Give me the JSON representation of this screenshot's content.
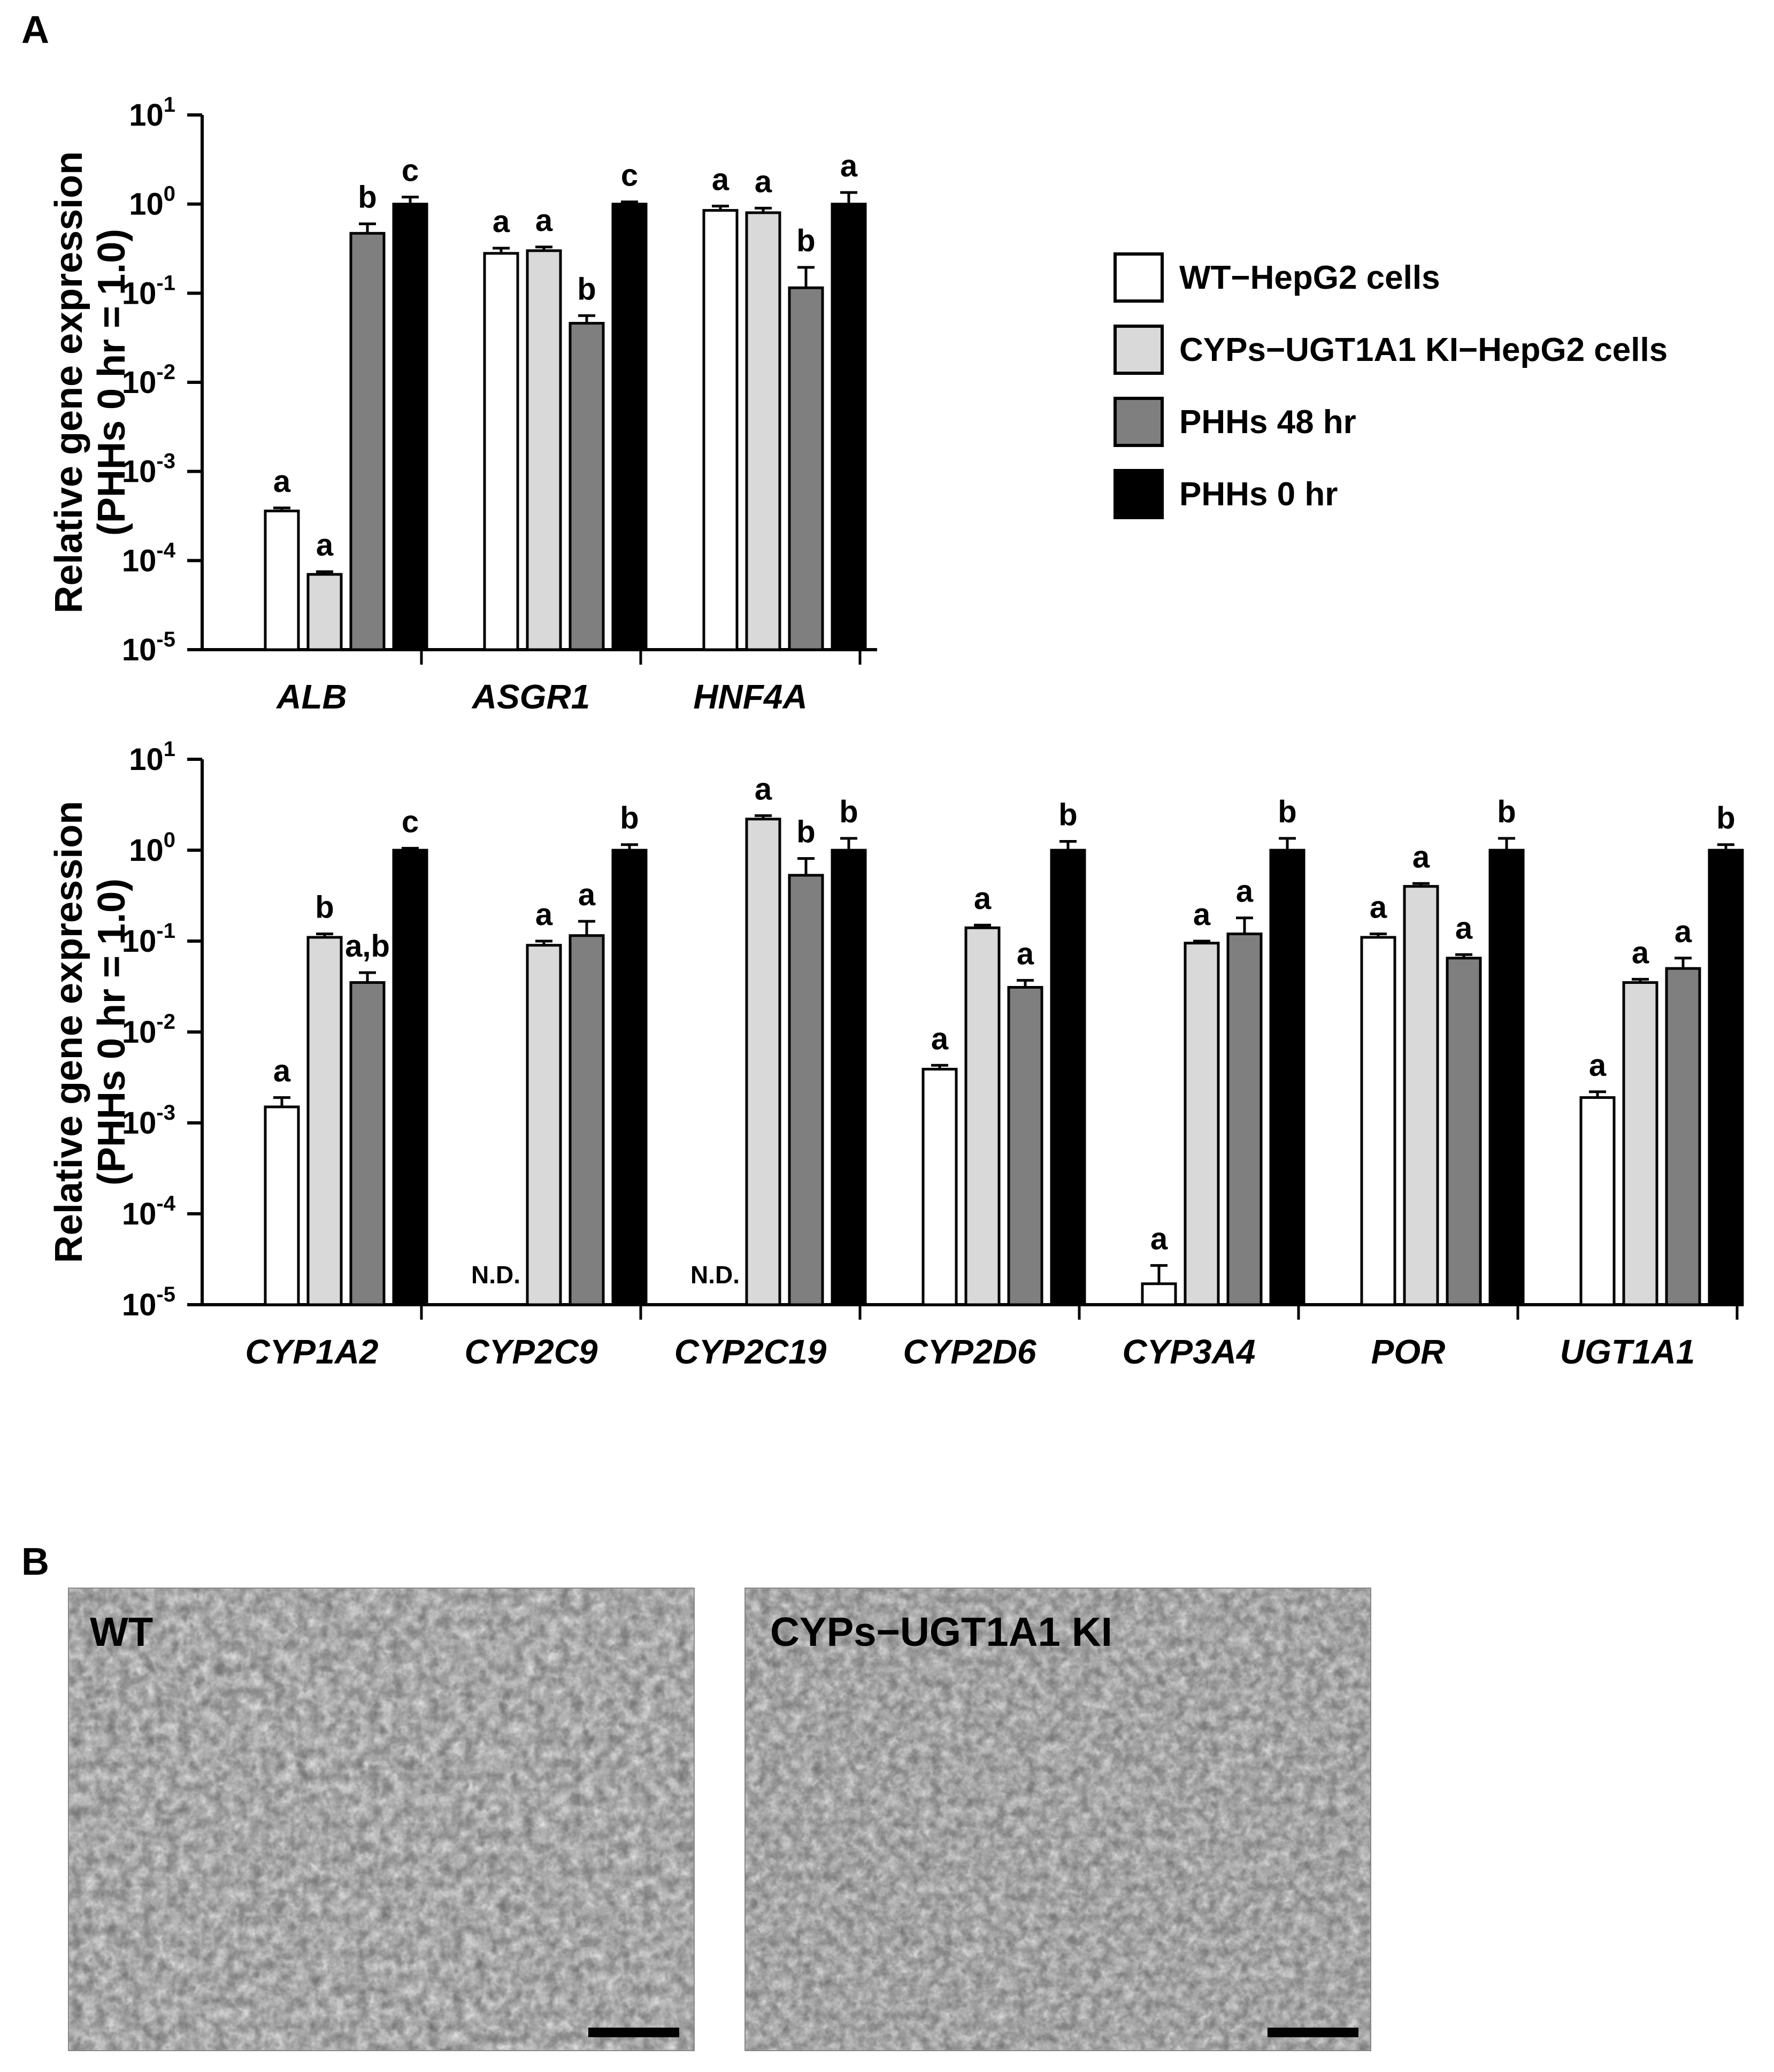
{
  "panel_a_label": "A",
  "panel_b_label": "B",
  "legend": [
    {
      "label": "WT−HepG2 cells",
      "color": "#ffffff"
    },
    {
      "label": "CYPs−UGT1A1 KI−HepG2 cells",
      "color": "#d9d9d9"
    },
    {
      "label": "PHHs 48 hr",
      "color": "#7f7f7f"
    },
    {
      "label": "PHHs 0 hr",
      "color": "#000000"
    }
  ],
  "chart_data": [
    {
      "type": "bar",
      "yscale": "log",
      "ylabel_line1": "Relative gene expression",
      "ylabel_line2": "(PHHs 0 hr = 1.0)",
      "ytick_labels": [
        {
          "base": "10",
          "exp": "1"
        },
        {
          "base": "10",
          "exp": "0"
        },
        {
          "base": "10",
          "exp": "-1"
        },
        {
          "base": "10",
          "exp": "-2"
        },
        {
          "base": "10",
          "exp": "-3"
        },
        {
          "base": "10",
          "exp": "-4"
        },
        {
          "base": "10",
          "exp": "-5"
        }
      ],
      "ylim_exp": [
        -5,
        1
      ],
      "categories": [
        "ALB",
        "ASGR1",
        "HNF4A"
      ],
      "series": [
        {
          "name": "WT−HepG2 cells",
          "values": [
            0.00036,
            0.28,
            0.85
          ],
          "errors": [
            3e-05,
            0.04,
            0.1
          ],
          "labels": [
            "a",
            "a",
            "a"
          ]
        },
        {
          "name": "CYPs−UGT1A1 KI−HepG2 cells",
          "values": [
            7e-05,
            0.3,
            0.8
          ],
          "errors": [
            5e-06,
            0.03,
            0.1
          ],
          "labels": [
            "a",
            "a",
            "a"
          ]
        },
        {
          "name": "PHHs 48 hr",
          "values": [
            0.47,
            0.046,
            0.115
          ],
          "errors": [
            0.13,
            0.01,
            0.08
          ],
          "labels": [
            "b",
            "b",
            "b"
          ]
        },
        {
          "name": "PHHs 0 hr",
          "values": [
            1.0,
            1.0,
            1.0
          ],
          "errors": [
            0.2,
            0.06,
            0.35
          ],
          "labels": [
            "c",
            "c",
            "a"
          ]
        }
      ]
    },
    {
      "type": "bar",
      "yscale": "log",
      "ylabel_line1": "Relative gene expression",
      "ylabel_line2": "(PHHs 0 hr = 1.0)",
      "ytick_labels": [
        {
          "base": "10",
          "exp": "1"
        },
        {
          "base": "10",
          "exp": "0"
        },
        {
          "base": "10",
          "exp": "-1"
        },
        {
          "base": "10",
          "exp": "-2"
        },
        {
          "base": "10",
          "exp": "-3"
        },
        {
          "base": "10",
          "exp": "-4"
        },
        {
          "base": "10",
          "exp": "-5"
        }
      ],
      "ylim_exp": [
        -5,
        1
      ],
      "categories": [
        "CYP1A2",
        "CYP2C9",
        "CYP2C19",
        "CYP2D6",
        "CYP3A4",
        "POR",
        "UGT1A1"
      ],
      "nd_label": "N.D.",
      "series": [
        {
          "name": "WT−HepG2 cells",
          "values": [
            0.0015,
            null,
            null,
            0.0039,
            1.7e-05,
            0.11,
            0.0019
          ],
          "errors": [
            0.0004,
            0,
            0,
            0.0004,
            1e-05,
            0.01,
            0.0003
          ],
          "labels": [
            "a",
            "N.D.",
            "N.D.",
            "a",
            "a",
            "a",
            "a"
          ]
        },
        {
          "name": "CYPs−UGT1A1 KI−HepG2 cells",
          "values": [
            0.11,
            0.09,
            2.2,
            0.14,
            0.095,
            0.4,
            0.035
          ],
          "errors": [
            0.01,
            0.01,
            0.2,
            0.01,
            0.005,
            0.03,
            0.003
          ],
          "labels": [
            "b",
            "a",
            "a",
            "a",
            "a",
            "a",
            "a"
          ]
        },
        {
          "name": "PHHs 48 hr",
          "values": [
            0.035,
            0.115,
            0.53,
            0.031,
            0.12,
            0.065,
            0.05
          ],
          "errors": [
            0.01,
            0.05,
            0.28,
            0.006,
            0.06,
            0.006,
            0.015
          ],
          "labels": [
            "a,b",
            "a",
            "b",
            "a",
            "a",
            "a",
            "a"
          ]
        },
        {
          "name": "PHHs 0 hr",
          "values": [
            1.0,
            1.0,
            1.0,
            1.0,
            1.0,
            1.0,
            1.0
          ],
          "errors": [
            0.05,
            0.15,
            0.35,
            0.25,
            0.35,
            0.35,
            0.15
          ],
          "labels": [
            "c",
            "b",
            "b",
            "b",
            "b",
            "b",
            "b"
          ]
        }
      ]
    }
  ],
  "photos": [
    {
      "label": "WT"
    },
    {
      "label": "CYPs−UGT1A1 KI"
    }
  ]
}
